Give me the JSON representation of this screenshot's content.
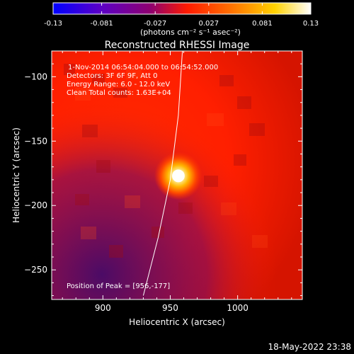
{
  "colorbar": {
    "ticks": [
      "-0.13",
      "-0.081",
      "-0.027",
      "0.027",
      "0.081",
      "0.13"
    ],
    "unit_label": "(photons cm⁻² s⁻¹ asec⁻²)",
    "vmin": -0.13,
    "vmax": 0.13,
    "colors": [
      "#0000ff",
      "#5a00c8",
      "#8f006f",
      "#ff1a00",
      "#ff6b00",
      "#ffd200",
      "#ffffff"
    ]
  },
  "chart_data": {
    "type": "heatmap",
    "title": "Reconstructed RHESSI Image",
    "xlabel": "Heliocentric X (arcsec)",
    "ylabel": "Heliocentric Y (arcsec)",
    "xlim": [
      862,
      1048
    ],
    "ylim": [
      -273,
      -80
    ],
    "xticks": [
      900,
      950,
      1000
    ],
    "yticks": [
      -100,
      -150,
      -200,
      -250
    ],
    "xtick_labels": [
      "900",
      "950",
      "1000"
    ],
    "ytick_labels": [
      "−100",
      "−150",
      "−200",
      "−250"
    ],
    "peak": {
      "x": 956,
      "y": -177
    },
    "limb_curve": [
      {
        "x": 959,
        "y": -80
      },
      {
        "x": 956,
        "y": -130
      },
      {
        "x": 950,
        "y": -180
      },
      {
        "x": 941,
        "y": -225
      },
      {
        "x": 930,
        "y": -270
      }
    ],
    "annotations": [
      "1-Nov-2014 06:54:04.000 to 06:54:52.000",
      "Detectors: 3F 6F 9F, Att 0",
      "Energy Range: 6.0 - 12.0 keV",
      "Clean    Total counts: 1.63E+04"
    ],
    "peak_label": "Position of Peak = [956,-177]"
  },
  "footer": {
    "timestamp": "18-May-2022 23:38"
  }
}
